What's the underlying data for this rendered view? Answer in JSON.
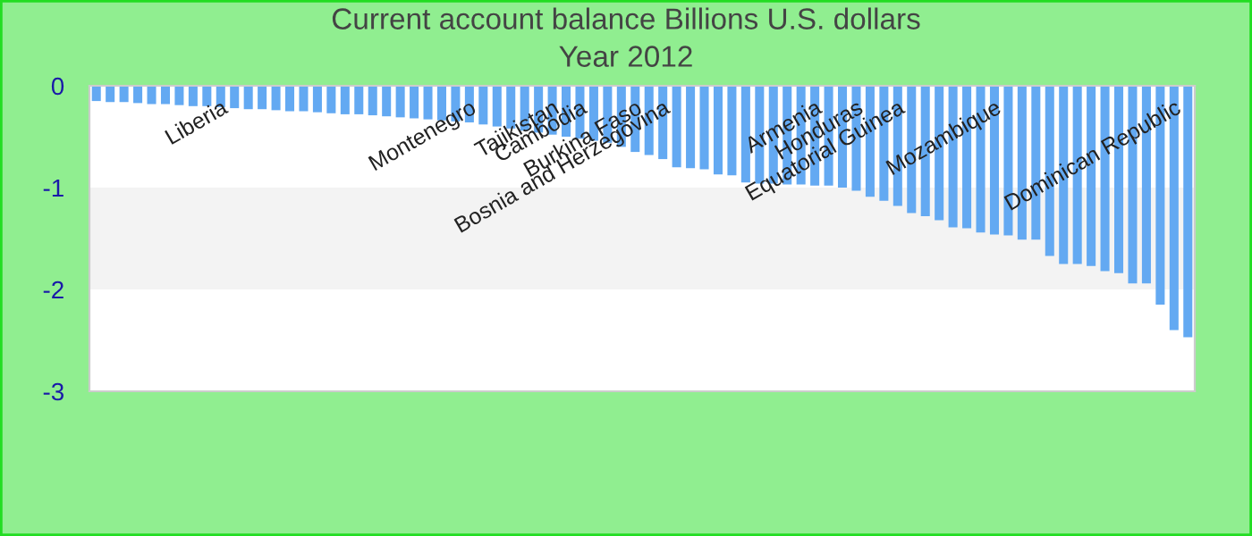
{
  "chart_data": {
    "type": "bar",
    "title": "Current account balance Billions U.S. dollars",
    "subtitle": "Year 2012",
    "categories": [
      null,
      null,
      null,
      null,
      null,
      null,
      null,
      null,
      null,
      "Liberia",
      null,
      null,
      null,
      null,
      null,
      null,
      null,
      null,
      null,
      null,
      null,
      null,
      null,
      null,
      null,
      null,
      null,
      "Montenegro",
      null,
      null,
      null,
      null,
      null,
      "Tajikistan",
      null,
      "Cambodia",
      null,
      null,
      null,
      "Burkina Faso",
      null,
      "Bosnia and Herzegovina",
      null,
      null,
      null,
      null,
      null,
      null,
      null,
      null,
      null,
      null,
      "Armenia",
      null,
      null,
      "Honduras",
      null,
      null,
      "Equatorial Guinea",
      null,
      null,
      null,
      null,
      null,
      null,
      "Mozambique",
      null,
      null,
      null,
      null,
      null,
      null,
      null,
      null,
      null,
      null,
      null,
      null,
      "Dominican Republic",
      null
    ],
    "values": [
      -0.15,
      -0.16,
      -0.16,
      -0.17,
      -0.18,
      -0.18,
      -0.19,
      -0.2,
      -0.2,
      -0.21,
      -0.22,
      -0.23,
      -0.23,
      -0.24,
      -0.25,
      -0.25,
      -0.26,
      -0.27,
      -0.28,
      -0.28,
      -0.29,
      -0.3,
      -0.31,
      -0.32,
      -0.33,
      -0.34,
      -0.35,
      -0.36,
      -0.38,
      -0.4,
      -0.42,
      -0.44,
      -0.46,
      -0.48,
      -0.5,
      -0.52,
      -0.54,
      -0.56,
      -0.6,
      -0.65,
      -0.68,
      -0.72,
      -0.8,
      -0.81,
      -0.82,
      -0.87,
      -0.88,
      -0.95,
      -0.96,
      -0.96,
      -0.97,
      -0.97,
      -0.98,
      -0.98,
      -1.0,
      -1.03,
      -1.09,
      -1.13,
      -1.18,
      -1.25,
      -1.28,
      -1.32,
      -1.39,
      -1.4,
      -1.44,
      -1.46,
      -1.47,
      -1.51,
      -1.51,
      -1.67,
      -1.75,
      -1.75,
      -1.77,
      -1.82,
      -1.84,
      -1.94,
      -1.94,
      -2.15,
      -2.4,
      -2.47
    ],
    "color": "#63a9f2",
    "ylim": [
      -3,
      0
    ],
    "yticks": [
      -3,
      -2,
      -1,
      0
    ],
    "bands": [
      {
        "axis": "y",
        "from": -2,
        "to": -1,
        "color": "#f3f3f3"
      }
    ],
    "legend": false
  }
}
